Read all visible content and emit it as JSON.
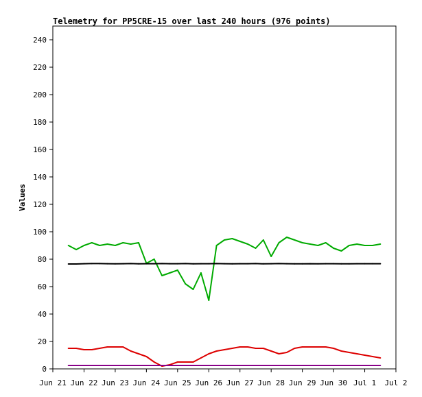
{
  "chart_data": {
    "type": "line",
    "title": "Telemetry for PP5CRE-15 over last 240 hours (976 points)",
    "xlabel": "",
    "ylabel": "Values",
    "ylim": [
      0,
      250
    ],
    "xlim": [
      "Jun 21",
      "Jul 2"
    ],
    "x_ticks": [
      "Jun 21",
      "Jun 22",
      "Jun 23",
      "Jun 24",
      "Jun 25",
      "Jun 26",
      "Jun 27",
      "Jun 28",
      "Jun 29",
      "Jun 30",
      "Jul 1",
      "Jul 2"
    ],
    "y_ticks": [
      0,
      20,
      40,
      60,
      80,
      100,
      120,
      140,
      160,
      180,
      200,
      220,
      240
    ],
    "grid": false,
    "legend": "none",
    "x_days": [
      "Jun 21.50",
      "Jun 21.75",
      "Jun 22.00",
      "Jun 22.25",
      "Jun 22.50",
      "Jun 22.75",
      "Jun 23.00",
      "Jun 23.25",
      "Jun 23.50",
      "Jun 23.75",
      "Jun 24.00",
      "Jun 24.25",
      "Jun 24.50",
      "Jun 24.75",
      "Jun 25.00",
      "Jun 25.25",
      "Jun 25.50",
      "Jun 25.75",
      "Jun 26.00",
      "Jun 26.25",
      "Jun 26.50",
      "Jun 26.75",
      "Jun 27.00",
      "Jun 27.25",
      "Jun 27.50",
      "Jun 27.75",
      "Jun 28.00",
      "Jun 28.25",
      "Jun 28.50",
      "Jun 28.75",
      "Jun 29.00",
      "Jun 29.25",
      "Jun 29.50",
      "Jun 29.75",
      "Jun 30.00",
      "Jun 30.25",
      "Jun 30.50",
      "Jun 30.75",
      "Jul 1.00",
      "Jul 1.25",
      "Jul 1.50"
    ],
    "series": [
      {
        "color": "#00aa00",
        "values": [
          90,
          87,
          90,
          92,
          90,
          91,
          90,
          92,
          91,
          92,
          77,
          80,
          68,
          70,
          72,
          62,
          58,
          70,
          50,
          90,
          94,
          95,
          93,
          91,
          88,
          94,
          82,
          92,
          96,
          94,
          92,
          91,
          90,
          92,
          88,
          86,
          90,
          91,
          90,
          90,
          91
        ]
      },
      {
        "color": "#000000",
        "values": [
          76.5,
          76.5,
          76.7,
          76.8,
          76.8,
          76.7,
          76.6,
          76.7,
          76.8,
          76.6,
          76.7,
          76.7,
          76.8,
          76.7,
          76.7,
          76.8,
          76.6,
          76.7,
          76.7,
          76.8,
          76.7,
          76.6,
          76.7,
          76.7,
          76.8,
          76.6,
          76.7,
          76.8,
          76.7,
          76.6,
          76.6,
          76.7,
          76.6,
          76.7,
          76.7,
          76.6,
          76.6,
          76.7,
          76.7,
          76.7,
          76.7
        ]
      },
      {
        "color": "#dd0000",
        "values": [
          15,
          15,
          14,
          14,
          15,
          16,
          16,
          16,
          13,
          11,
          9,
          5,
          2,
          3,
          5,
          5,
          5,
          8,
          11,
          13,
          14,
          15,
          16,
          16,
          15,
          15,
          13,
          11,
          12,
          15,
          16,
          16,
          16,
          16,
          15,
          13,
          12,
          11,
          10,
          9,
          8
        ]
      },
      {
        "color": "#880088",
        "values": [
          2.5,
          2.5,
          2.5,
          2.5,
          2.5,
          2.5,
          2.5,
          2.5,
          2.5,
          2.5,
          2.5,
          2.5,
          2.5,
          2.5,
          2.5,
          2.5,
          2.5,
          2.5,
          2.5,
          2.5,
          2.5,
          2.5,
          2.5,
          2.5,
          2.5,
          2.5,
          2.5,
          2.5,
          2.5,
          2.5,
          2.5,
          2.5,
          2.5,
          2.5,
          2.5,
          2.5,
          2.5,
          2.5,
          2.5,
          2.5,
          2.5
        ]
      }
    ]
  }
}
